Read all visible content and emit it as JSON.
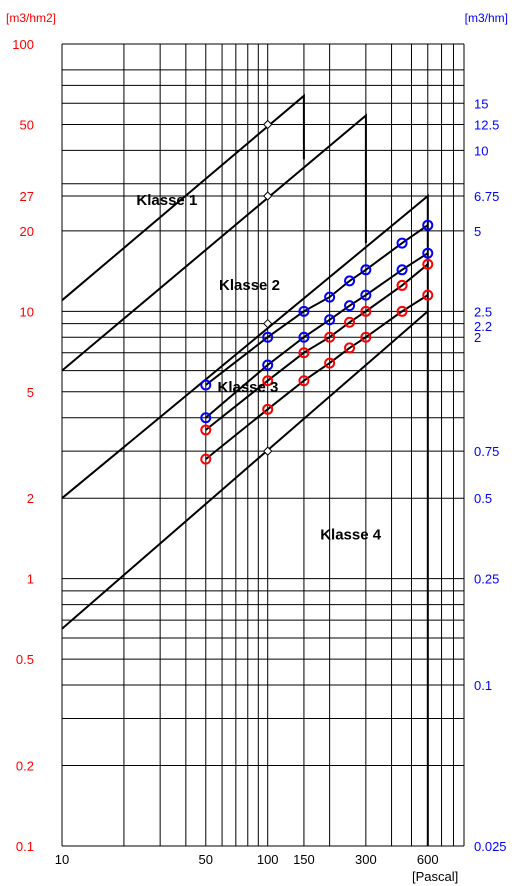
{
  "chart_data": {
    "type": "line",
    "xscale": "log",
    "yscale": "log",
    "xlim": [
      10,
      900
    ],
    "ylim": [
      0.1,
      100
    ],
    "grid": true,
    "left_unit_label": "[m3/hm2]",
    "right_unit_label": "[m3/hm]",
    "x_unit_label": "[Pascal]",
    "x_tick_labels": [
      {
        "value": 10,
        "label": "10"
      },
      {
        "value": 50,
        "label": "50"
      },
      {
        "value": 100,
        "label": "100"
      },
      {
        "value": 150,
        "label": "150"
      },
      {
        "value": 300,
        "label": "300"
      },
      {
        "value": 600,
        "label": "600"
      }
    ],
    "left_tick_labels": [
      {
        "value": 100,
        "label": "100"
      },
      {
        "value": 50,
        "label": "50"
      },
      {
        "value": 27,
        "label": "27"
      },
      {
        "value": 20,
        "label": "20"
      },
      {
        "value": 10,
        "label": "10"
      },
      {
        "value": 5,
        "label": "5"
      },
      {
        "value": 2,
        "label": "2"
      },
      {
        "value": 1,
        "label": "1"
      },
      {
        "value": 0.5,
        "label": "0.5"
      },
      {
        "value": 0.2,
        "label": "0.2"
      },
      {
        "value": 0.1,
        "label": "0.1"
      }
    ],
    "right_tick_labels": [
      {
        "value": 60,
        "label": "15"
      },
      {
        "value": 50,
        "label": "12.5"
      },
      {
        "value": 40,
        "label": "10"
      },
      {
        "value": 27,
        "label": "6.75"
      },
      {
        "value": 20,
        "label": "5"
      },
      {
        "value": 10,
        "label": "2.5"
      },
      {
        "value": 8.8,
        "label": "2.2"
      },
      {
        "value": 8,
        "label": "2"
      },
      {
        "value": 3,
        "label": "0.75"
      },
      {
        "value": 2,
        "label": "0.5"
      },
      {
        "value": 1,
        "label": "0.25"
      },
      {
        "value": 0.4,
        "label": "0.1"
      },
      {
        "value": 0.1,
        "label": "0.025"
      }
    ],
    "horizontal_gridlines": [
      100,
      80,
      70,
      60,
      50,
      40,
      30,
      27,
      20,
      10,
      9,
      8,
      7,
      6,
      5,
      4,
      3,
      2,
      1,
      0.9,
      0.8,
      0.7,
      0.6,
      0.5,
      0.4,
      0.3,
      0.2,
      0.1
    ],
    "vertical_gridlines": [
      10,
      20,
      30,
      40,
      50,
      60,
      70,
      80,
      90,
      100,
      150,
      200,
      300,
      400,
      500,
      600,
      700,
      800,
      900
    ],
    "class_labels": [
      {
        "label": "Klasse 1",
        "x": 23,
        "y": 25
      },
      {
        "label": "Klasse 2",
        "x": 58,
        "y": 12
      },
      {
        "label": "Klasse 3",
        "x": 57,
        "y": 5
      },
      {
        "label": "Klasse 4",
        "x": 180,
        "y": 1.4
      }
    ],
    "boundaries": [
      {
        "name": "Klasse 1 / 2",
        "points": [
          [
            10,
            11
          ],
          [
            150,
            64
          ],
          [
            150,
            37
          ]
        ]
      },
      {
        "name": "Klasse 2 / 3",
        "points": [
          [
            10,
            6
          ],
          [
            300,
            54
          ],
          [
            300,
            18
          ]
        ]
      },
      {
        "name": "Klasse 3 upper",
        "points": [
          [
            10,
            2
          ],
          [
            600,
            27
          ],
          [
            600,
            0.1
          ]
        ]
      },
      {
        "name": "Klasse 3 / 4",
        "points": [
          [
            10,
            0.65
          ],
          [
            600,
            10
          ]
        ]
      }
    ],
    "reference_markers": [
      [
        100,
        50
      ],
      [
        100,
        27
      ],
      [
        100,
        9
      ],
      [
        100,
        3
      ]
    ],
    "series": [
      {
        "color": "#0000ff",
        "points": [
          [
            50,
            5.3
          ],
          [
            100,
            8
          ],
          [
            150,
            10
          ],
          [
            200,
            11.3
          ],
          [
            250,
            13
          ],
          [
            300,
            14.3
          ],
          [
            450,
            18
          ],
          [
            600,
            21
          ]
        ]
      },
      {
        "color": "#0000ff",
        "points": [
          [
            50,
            4
          ],
          [
            100,
            6.3
          ],
          [
            150,
            8
          ],
          [
            200,
            9.3
          ],
          [
            250,
            10.5
          ],
          [
            300,
            11.5
          ],
          [
            450,
            14.3
          ],
          [
            600,
            16.5
          ]
        ]
      },
      {
        "color": "#ff0000",
        "points": [
          [
            50,
            3.6
          ],
          [
            100,
            5.5
          ],
          [
            150,
            7
          ],
          [
            200,
            8
          ],
          [
            250,
            9.1
          ],
          [
            300,
            10
          ],
          [
            450,
            12.5
          ],
          [
            600,
            15
          ]
        ]
      },
      {
        "color": "#ff0000",
        "points": [
          [
            50,
            2.8
          ],
          [
            100,
            4.3
          ],
          [
            150,
            5.5
          ],
          [
            200,
            6.4
          ],
          [
            250,
            7.3
          ],
          [
            300,
            8
          ],
          [
            450,
            10
          ],
          [
            600,
            11.5
          ]
        ]
      }
    ]
  }
}
